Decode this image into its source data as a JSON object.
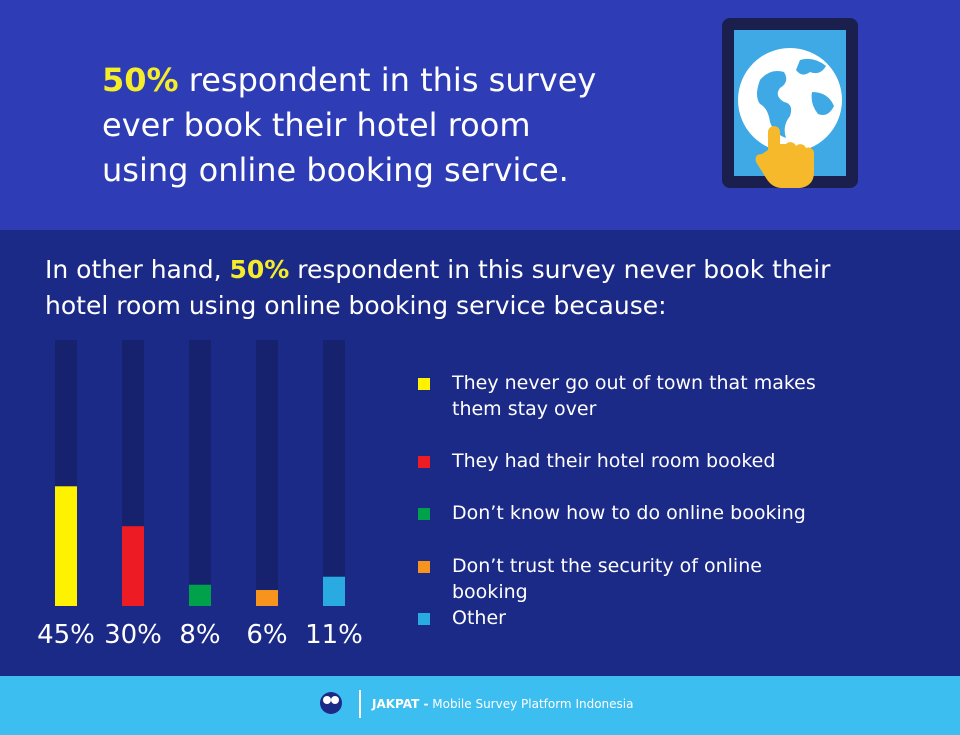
{
  "header": {
    "highlight": "50%",
    "lines": [
      "respondent in this survey",
      "ever book their hotel room",
      "using online booking service."
    ]
  },
  "chart_data": {
    "type": "bar",
    "title": {
      "before": "In other hand,",
      "highlight": "50%",
      "after": "respondent in this survey never book their hotel room using online booking service because:"
    },
    "categories": [
      "They never go out of town that makes them stay over",
      "They had their hotel room booked",
      "Don’t know how to do online booking",
      "Don’t trust the security of online booking",
      "Other"
    ],
    "values": [
      45,
      30,
      8,
      6,
      11
    ],
    "value_labels": [
      "45%",
      "30%",
      "8%",
      "6%",
      "11%"
    ],
    "colors": [
      "#fff200",
      "#ed1c24",
      "#00a14b",
      "#f7941d",
      "#29abe2"
    ],
    "ylim": [
      0,
      100
    ]
  },
  "footer": {
    "brand": "JAKPAT -",
    "tagline": "Mobile Survey Platform Indonesia"
  }
}
